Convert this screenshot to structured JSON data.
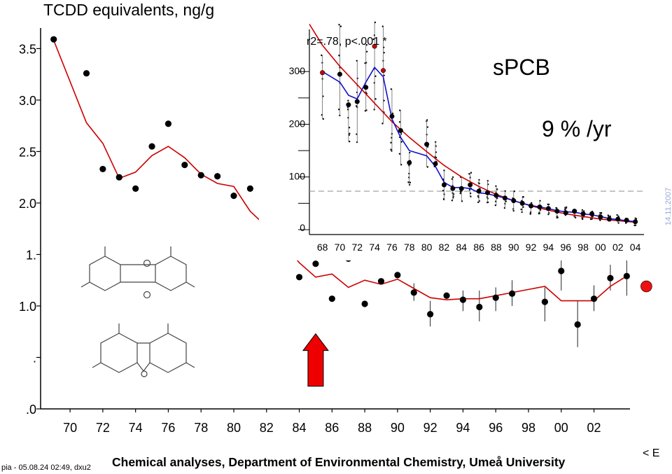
{
  "texts": {
    "main_title": "TCDD equivalents, ng/g",
    "inset_stat": "r2=.78, p<.001 *",
    "inset_title": "sPCB",
    "inset_rate": "9 % /yr",
    "date_stamp": "14.11.2007",
    "footer_credit": "Chemical analyses, Department of Environmental Chemistry, Umeå University",
    "footer_left": "pia - 05.08.24  02:49,  dxu2",
    "corner_mark": "< E"
  },
  "chart_data": [
    {
      "type": "scatter",
      "name": "main",
      "title": "TCDD equivalents, ng/g",
      "y_tick_labels": [
        "3.5",
        "3.0",
        "2.5",
        "2.0",
        "1.",
        "1.0",
        ".",
        ".0"
      ],
      "y_tick_values": [
        3.5,
        3.0,
        2.5,
        2.0,
        1.5,
        1.0,
        0.5,
        0.0
      ],
      "x_tick_labels": [
        "70",
        "72",
        "74",
        "76",
        "78",
        "80",
        "82",
        "84",
        "86",
        "88",
        "90",
        "92",
        "94",
        "96",
        "98",
        "00",
        "02"
      ],
      "x_tick_values": [
        1970,
        1972,
        1974,
        1976,
        1978,
        1980,
        1982,
        1984,
        1986,
        1988,
        1990,
        1992,
        1994,
        1996,
        1998,
        2000,
        2002
      ],
      "xlim": [
        1968.2,
        2004.2
      ],
      "ylim": [
        0,
        3.7
      ],
      "points": [
        {
          "x": 1969,
          "y": 3.59
        },
        {
          "x": 1971,
          "y": 3.26
        },
        {
          "x": 1972,
          "y": 2.33
        },
        {
          "x": 1973,
          "y": 2.25
        },
        {
          "x": 1974,
          "y": 2.14
        },
        {
          "x": 1975,
          "y": 2.55
        },
        {
          "x": 1976,
          "y": 2.77
        },
        {
          "x": 1977,
          "y": 2.37
        },
        {
          "x": 1978,
          "y": 2.27
        },
        {
          "x": 1979,
          "y": 2.26
        },
        {
          "x": 1980,
          "y": 2.07
        },
        {
          "x": 1981,
          "y": 2.14
        },
        {
          "x": 1983,
          "y": 1.51
        },
        {
          "x": 1984,
          "y": 1.28
        },
        {
          "x": 1985,
          "y": 1.41
        },
        {
          "x": 1986,
          "y": 1.07
        },
        {
          "x": 1987,
          "y": 1.46
        },
        {
          "x": 1988,
          "y": 1.02
        },
        {
          "x": 1989,
          "y": 1.24
        },
        {
          "x": 1990,
          "y": 1.3
        },
        {
          "x": 1991,
          "y": 1.13
        },
        {
          "x": 1992,
          "y": 0.92
        },
        {
          "x": 1993,
          "y": 1.1
        },
        {
          "x": 1994,
          "y": 1.06
        },
        {
          "x": 1995,
          "y": 0.99
        },
        {
          "x": 1996,
          "y": 1.08
        },
        {
          "x": 1997,
          "y": 1.12
        },
        {
          "x": 1999,
          "y": 1.04
        },
        {
          "x": 2000,
          "y": 1.34
        },
        {
          "x": 2001,
          "y": 0.82
        },
        {
          "x": 2002,
          "y": 1.07
        },
        {
          "x": 2003,
          "y": 1.27
        },
        {
          "x": 2004,
          "y": 1.29
        }
      ],
      "error_bars": [
        {
          "x": 1991,
          "lo": 1.05,
          "hi": 1.22
        },
        {
          "x": 1992,
          "lo": 0.8,
          "hi": 1.05
        },
        {
          "x": 1994,
          "lo": 0.95,
          "hi": 1.15
        },
        {
          "x": 1995,
          "lo": 0.85,
          "hi": 1.15
        },
        {
          "x": 1996,
          "lo": 0.95,
          "hi": 1.18
        },
        {
          "x": 1997,
          "lo": 1.0,
          "hi": 1.25
        },
        {
          "x": 1999,
          "lo": 0.85,
          "hi": 1.18
        },
        {
          "x": 2000,
          "lo": 1.15,
          "hi": 1.5
        },
        {
          "x": 2001,
          "lo": 0.6,
          "hi": 1.05
        },
        {
          "x": 2002,
          "lo": 0.95,
          "hi": 1.2
        },
        {
          "x": 2003,
          "lo": 1.15,
          "hi": 1.4
        },
        {
          "x": 2004,
          "lo": 1.1,
          "hi": 1.45
        }
      ],
      "trend_line": {
        "color": "#cc0000",
        "points": [
          [
            1969,
            3.58
          ],
          [
            1971,
            2.78
          ],
          [
            1972,
            2.58
          ],
          [
            1973,
            2.24
          ],
          [
            1974,
            2.3
          ],
          [
            1975,
            2.46
          ],
          [
            1976,
            2.55
          ],
          [
            1977,
            2.44
          ],
          [
            1978,
            2.28
          ],
          [
            1979,
            2.19
          ],
          [
            1980,
            2.16
          ],
          [
            1981,
            1.92
          ],
          [
            1983,
            1.62
          ],
          [
            1984,
            1.42
          ],
          [
            1985,
            1.28
          ],
          [
            1986,
            1.31
          ],
          [
            1987,
            1.18
          ],
          [
            1988,
            1.25
          ],
          [
            1989,
            1.21
          ],
          [
            1990,
            1.26
          ],
          [
            1991,
            1.17
          ],
          [
            1992,
            1.08
          ],
          [
            1993,
            1.06
          ],
          [
            1994,
            1.07
          ],
          [
            1995,
            1.07
          ],
          [
            1996,
            1.1
          ],
          [
            1997,
            1.13
          ],
          [
            1998,
            1.16
          ],
          [
            1999,
            1.19
          ],
          [
            2000,
            1.05
          ],
          [
            2001,
            1.05
          ],
          [
            2002,
            1.05
          ],
          [
            2003,
            1.19
          ],
          [
            2004,
            1.29
          ]
        ]
      },
      "highlight_point": {
        "x": 2005.2,
        "y": 1.19,
        "color": "#ee1111"
      },
      "arrow": {
        "x": 1985,
        "y_from": 0.22,
        "y_to": 0.73,
        "color": "#ee0000"
      }
    },
    {
      "type": "scatter",
      "name": "inset",
      "title": "sPCB",
      "y_tick_labels": [
        "300",
        "200",
        "100",
        "0"
      ],
      "y_tick_values": [
        300,
        200,
        100,
        0
      ],
      "x_tick_labels": [
        "68",
        "70",
        "72",
        "74",
        "76",
        "78",
        "80",
        "82",
        "84",
        "86",
        "88",
        "90",
        "92",
        "94",
        "96",
        "98",
        "00",
        "02",
        "04"
      ],
      "x_tick_values": [
        1968,
        1970,
        1972,
        1974,
        1976,
        1978,
        1980,
        1982,
        1984,
        1986,
        1988,
        1990,
        1992,
        1994,
        1996,
        1998,
        2000,
        2002,
        2004
      ],
      "xlim": [
        1966.5,
        2005
      ],
      "ylim": [
        0,
        380
      ],
      "reference_line": {
        "y": 73,
        "color": "#888888",
        "style": "dashed"
      },
      "means": [
        {
          "x": 1968,
          "y": 298,
          "color": "#cc0000"
        },
        {
          "x": 1970,
          "y": 295,
          "color": "#000000"
        },
        {
          "x": 1971,
          "y": 237,
          "color": "#000000"
        },
        {
          "x": 1972,
          "y": 243,
          "color": "#000000"
        },
        {
          "x": 1973,
          "y": 270,
          "color": "#000000"
        },
        {
          "x": 1974,
          "y": 348,
          "color": "#cc0000"
        },
        {
          "x": 1975,
          "y": 302,
          "color": "#cc0000"
        },
        {
          "x": 1976,
          "y": 215,
          "color": "#000000"
        },
        {
          "x": 1977,
          "y": 188,
          "color": "#000000"
        },
        {
          "x": 1978,
          "y": 127,
          "color": "#000000"
        },
        {
          "x": 1980,
          "y": 162,
          "color": "#000000"
        },
        {
          "x": 1981,
          "y": 125,
          "color": "#000000"
        },
        {
          "x": 1982,
          "y": 85,
          "color": "#000000"
        },
        {
          "x": 1983,
          "y": 78,
          "color": "#000000"
        },
        {
          "x": 1984,
          "y": 78,
          "color": "#000000"
        },
        {
          "x": 1985,
          "y": 85,
          "color": "#000000"
        },
        {
          "x": 1986,
          "y": 73,
          "color": "#000000"
        },
        {
          "x": 1987,
          "y": 70,
          "color": "#000000"
        },
        {
          "x": 1988,
          "y": 65,
          "color": "#000000"
        },
        {
          "x": 1989,
          "y": 60,
          "color": "#000000"
        },
        {
          "x": 1990,
          "y": 55,
          "color": "#000000"
        },
        {
          "x": 1991,
          "y": 50,
          "color": "#000000"
        },
        {
          "x": 1992,
          "y": 45,
          "color": "#000000"
        },
        {
          "x": 1993,
          "y": 43,
          "color": "#000000"
        },
        {
          "x": 1994,
          "y": 40,
          "color": "#000000"
        },
        {
          "x": 1995,
          "y": 35,
          "color": "#000000"
        },
        {
          "x": 1996,
          "y": 32,
          "color": "#000000"
        },
        {
          "x": 1997,
          "y": 35,
          "color": "#000000"
        },
        {
          "x": 1998,
          "y": 30,
          "color": "#000000"
        },
        {
          "x": 1999,
          "y": 30,
          "color": "#000000"
        },
        {
          "x": 2000,
          "y": 24,
          "color": "#000000"
        },
        {
          "x": 2001,
          "y": 20,
          "color": "#000000"
        },
        {
          "x": 2002,
          "y": 20,
          "color": "#000000"
        },
        {
          "x": 2003,
          "y": 18,
          "color": "#000000"
        },
        {
          "x": 2004,
          "y": 15,
          "color": "#000000"
        }
      ],
      "blue_line": {
        "color": "#0000cc",
        "points": [
          [
            1968,
            300
          ],
          [
            1970,
            280
          ],
          [
            1971,
            255
          ],
          [
            1972,
            248
          ],
          [
            1973,
            280
          ],
          [
            1974,
            308
          ],
          [
            1975,
            290
          ],
          [
            1976,
            210
          ],
          [
            1977,
            175
          ],
          [
            1978,
            150
          ],
          [
            1980,
            140
          ],
          [
            1981,
            120
          ],
          [
            1982,
            90
          ],
          [
            1983,
            80
          ],
          [
            1984,
            80
          ],
          [
            1985,
            78
          ],
          [
            1986,
            70
          ],
          [
            1987,
            68
          ],
          [
            1988,
            64
          ],
          [
            1989,
            60
          ],
          [
            1990,
            55
          ],
          [
            1991,
            50
          ],
          [
            1992,
            46
          ],
          [
            1993,
            43
          ],
          [
            1994,
            40
          ],
          [
            1995,
            36
          ],
          [
            1996,
            34
          ],
          [
            1997,
            33
          ],
          [
            1998,
            30
          ],
          [
            1999,
            28
          ],
          [
            2000,
            25
          ],
          [
            2001,
            21
          ],
          [
            2002,
            19
          ],
          [
            2003,
            17
          ],
          [
            2004,
            15
          ]
        ]
      },
      "red_curve": {
        "color": "#cc0000",
        "points": [
          [
            1966.5,
            390
          ],
          [
            1968,
            350
          ],
          [
            1970,
            310
          ],
          [
            1972,
            275
          ],
          [
            1974,
            240
          ],
          [
            1976,
            205
          ],
          [
            1978,
            175
          ],
          [
            1980,
            148
          ],
          [
            1982,
            122
          ],
          [
            1984,
            100
          ],
          [
            1986,
            82
          ],
          [
            1988,
            67
          ],
          [
            1990,
            55
          ],
          [
            1992,
            45
          ],
          [
            1994,
            37
          ],
          [
            1996,
            30
          ],
          [
            1998,
            25
          ],
          [
            2000,
            20
          ],
          [
            2002,
            17
          ],
          [
            2004,
            14
          ]
        ]
      }
    }
  ]
}
